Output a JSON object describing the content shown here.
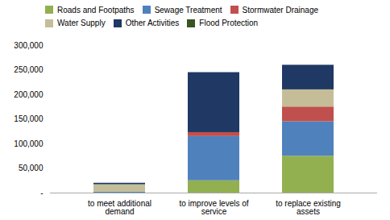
{
  "chart_data": {
    "type": "bar",
    "stacked": true,
    "categories": [
      "to meet additional\ndemand",
      "to improve levels of\nservice",
      "to replace existing\nassets"
    ],
    "series": [
      {
        "name": "Roads and Footpaths",
        "color": "#92b050",
        "values": [
          0,
          25000,
          75000
        ]
      },
      {
        "name": "Sewage Treatment",
        "color": "#4f81bd",
        "values": [
          2000,
          90000,
          70000
        ]
      },
      {
        "name": "Stormwater Drainage",
        "color": "#c0504d",
        "values": [
          0,
          8000,
          30000
        ]
      },
      {
        "name": "Water Supply",
        "color": "#c4bd97",
        "values": [
          15000,
          0,
          35000
        ]
      },
      {
        "name": "Other Activities",
        "color": "#1f3864",
        "values": [
          3000,
          122000,
          50000
        ]
      },
      {
        "name": "Flood Protection",
        "color": "#375623",
        "values": [
          0,
          0,
          0
        ]
      }
    ],
    "ylim": [
      0,
      300000
    ],
    "yticks": [
      {
        "value": 0,
        "label": "-"
      },
      {
        "value": 50000,
        "label": "50,000"
      },
      {
        "value": 100000,
        "label": "100,000"
      },
      {
        "value": 150000,
        "label": "150,000"
      },
      {
        "value": 200000,
        "label": "200,000"
      },
      {
        "value": 250000,
        "label": "250,000"
      },
      {
        "value": 300000,
        "label": "300,000"
      }
    ],
    "grid": false,
    "legend": "top"
  }
}
